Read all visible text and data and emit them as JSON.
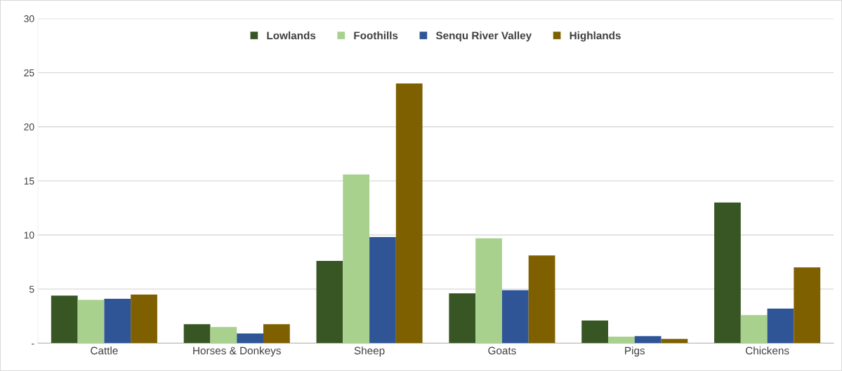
{
  "chart_data": {
    "type": "bar",
    "categories": [
      "Cattle",
      "Horses & Donkeys",
      "Sheep",
      "Goats",
      "Pigs",
      "Chickens"
    ],
    "series": [
      {
        "name": "Lowlands",
        "color": "#375623",
        "values": [
          4.4,
          1.75,
          7.6,
          4.6,
          2.1,
          13.0
        ]
      },
      {
        "name": "Foothills",
        "color": "#a9d18e",
        "values": [
          4.0,
          1.5,
          15.6,
          9.7,
          0.6,
          2.6
        ]
      },
      {
        "name": "Senqu River Valley",
        "color": "#2f5597",
        "values": [
          4.1,
          0.9,
          9.8,
          4.9,
          0.65,
          3.2
        ]
      },
      {
        "name": "Highlands",
        "color": "#7f6000",
        "values": [
          4.5,
          1.75,
          24.0,
          8.1,
          0.4,
          7.0
        ]
      }
    ],
    "ylim": [
      0,
      30
    ],
    "yticks": [
      {
        "value": 0,
        "label": "-"
      },
      5,
      10,
      15,
      20,
      25,
      30
    ],
    "grid": "y",
    "legend": "top"
  }
}
